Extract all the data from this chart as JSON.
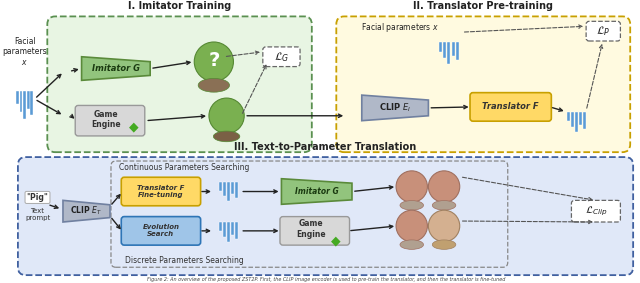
{
  "caption": "Figure 2: An overview of the proposed ZST2P. First, the CLIP image encoder is used to pre-train the translator, and then the translator is fine-tuned",
  "section1_title": "I. Imitator Training",
  "section2_title": "II. Translator Pre-training",
  "section3_title": "III. Text-to-Parameter Translation",
  "green_face_color": "#7ab87a",
  "pink_face_color": "#c8907a",
  "bar_blue": "#5b9bd5",
  "green_trap": "#92c47d",
  "gray_trap": "#b0b0b0",
  "yellow_box": "#ffd966",
  "blue_box": "#9fc5e8",
  "gray_box": "#d0d0d0"
}
